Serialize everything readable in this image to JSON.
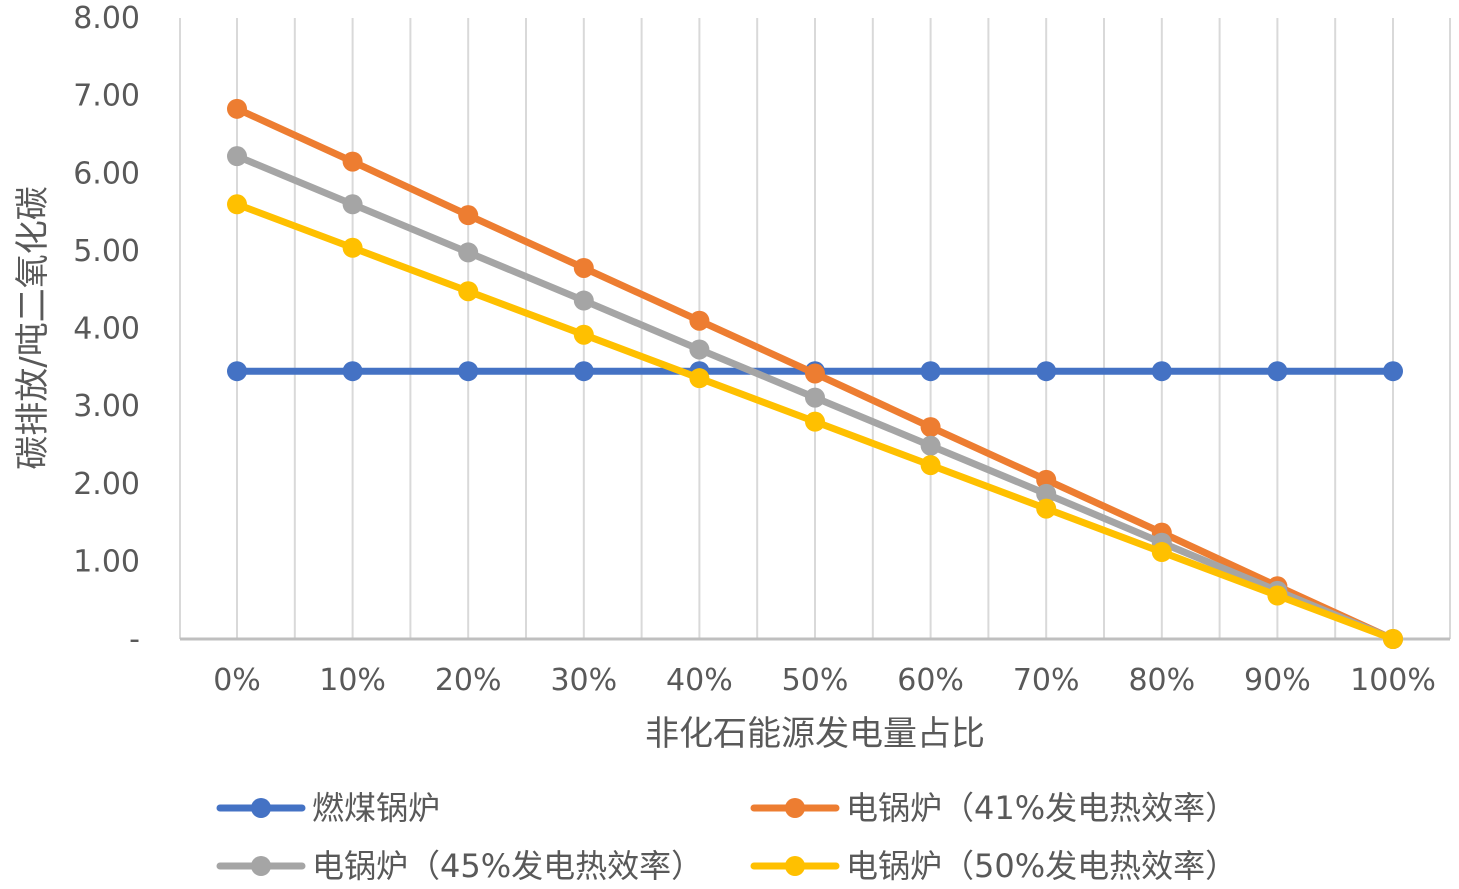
{
  "chart_data": {
    "type": "line",
    "title": "",
    "xlabel": "非化石能源发电量占比",
    "ylabel": "碳排放/吨二氧化碳",
    "categories": [
      "0%",
      "10%",
      "20%",
      "30%",
      "40%",
      "50%",
      "60%",
      "70%",
      "80%",
      "90%",
      "100%"
    ],
    "ylim": [
      0,
      8
    ],
    "yticks": [
      {
        "value": 0,
        "label": "-"
      },
      {
        "value": 1,
        "label": "1.00"
      },
      {
        "value": 2,
        "label": "2.00"
      },
      {
        "value": 3,
        "label": "3.00"
      },
      {
        "value": 4,
        "label": "4.00"
      },
      {
        "value": 5,
        "label": "5.00"
      },
      {
        "value": 6,
        "label": "6.00"
      },
      {
        "value": 7,
        "label": "7.00"
      },
      {
        "value": 8,
        "label": "8.00"
      }
    ],
    "grid": "vertical",
    "legend_position": "bottom",
    "series": [
      {
        "name": "燃煤锅炉",
        "color": "#4472C4",
        "values": [
          3.45,
          3.45,
          3.45,
          3.45,
          3.45,
          3.45,
          3.45,
          3.45,
          3.45,
          3.45,
          3.45
        ]
      },
      {
        "name": "电锅炉（41%发电热效率）",
        "color": "#ED7D31",
        "values": [
          6.83,
          6.15,
          5.46,
          4.78,
          4.1,
          3.42,
          2.73,
          2.05,
          1.37,
          0.68,
          0
        ]
      },
      {
        "name": "电锅炉（45%发电热效率）",
        "color": "#A5A5A5",
        "values": [
          6.22,
          5.6,
          4.98,
          4.36,
          3.73,
          3.11,
          2.49,
          1.87,
          1.24,
          0.62,
          0
        ]
      },
      {
        "name": "电锅炉（50%发电热效率）",
        "color": "#FFC000",
        "values": [
          5.6,
          5.04,
          4.48,
          3.92,
          3.36,
          2.8,
          2.24,
          1.68,
          1.12,
          0.56,
          0
        ]
      }
    ]
  }
}
